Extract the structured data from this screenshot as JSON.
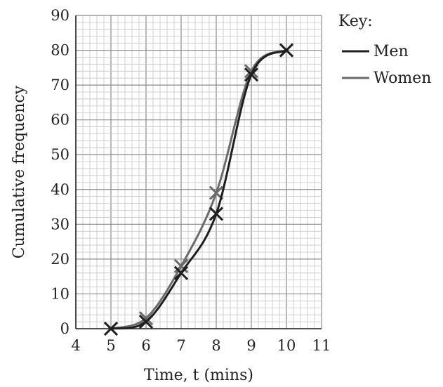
{
  "chart_data": {
    "type": "line",
    "xlabel": "Time, t (mins)",
    "ylabel": "Cumulative frequency",
    "xlim": [
      4,
      11
    ],
    "ylim": [
      0,
      90
    ],
    "x_ticks": [
      "4",
      "5",
      "6",
      "7",
      "8",
      "9",
      "10",
      "11"
    ],
    "y_ticks": [
      "0",
      "10",
      "20",
      "30",
      "40",
      "50",
      "60",
      "70",
      "80",
      "90"
    ],
    "grid": true,
    "legend": {
      "title": "Key:",
      "position": "top-right"
    },
    "series": [
      {
        "name": "Men",
        "color": "#1f1f1f",
        "marker": "cross",
        "points": [
          {
            "x": 5,
            "y": 0
          },
          {
            "x": 6,
            "y": 2
          },
          {
            "x": 7,
            "y": 16
          },
          {
            "x": 8,
            "y": 33
          },
          {
            "x": 9,
            "y": 73
          },
          {
            "x": 10,
            "y": 80
          }
        ]
      },
      {
        "name": "Women",
        "color": "#6b6b6b",
        "marker": "cross",
        "points": [
          {
            "x": 5,
            "y": 0
          },
          {
            "x": 6,
            "y": 3
          },
          {
            "x": 7,
            "y": 18
          },
          {
            "x": 8,
            "y": 39
          },
          {
            "x": 9,
            "y": 74
          },
          {
            "x": 10,
            "y": 80
          }
        ]
      }
    ]
  }
}
